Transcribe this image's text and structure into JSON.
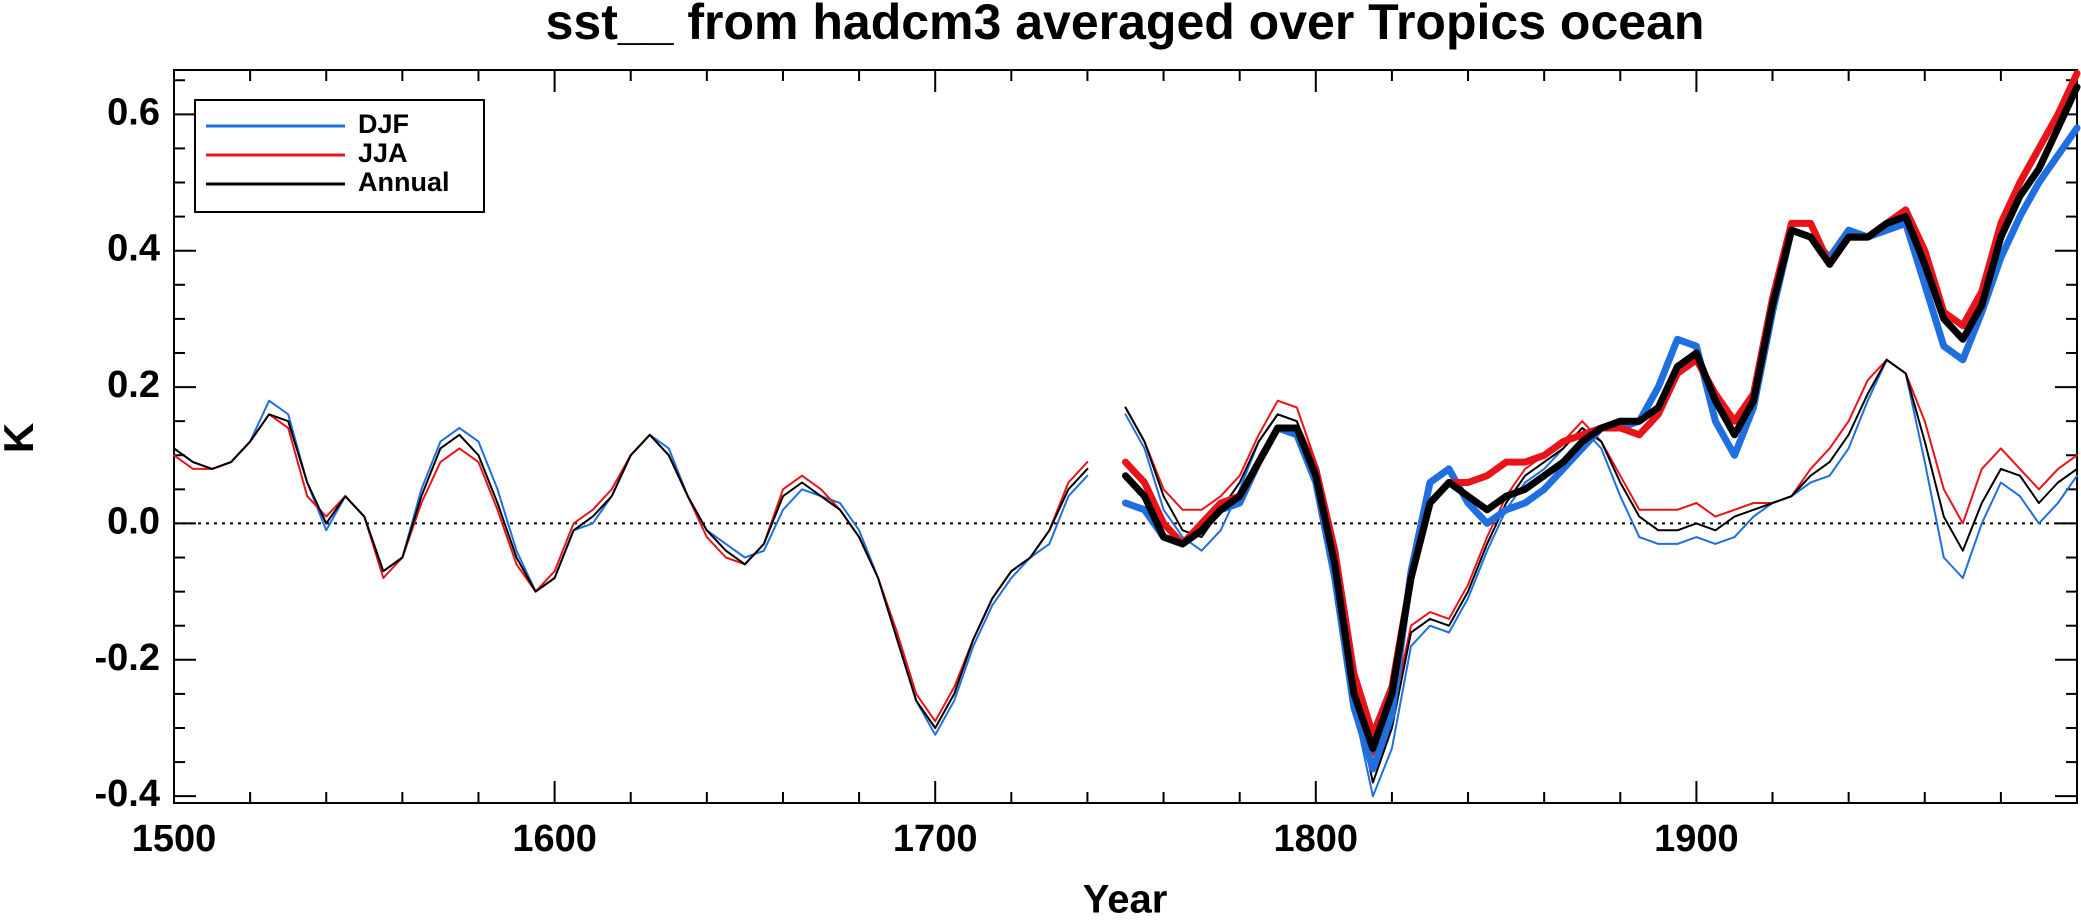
{
  "chart_data": {
    "type": "line",
    "title": "sst__ from hadcm3 averaged over Tropics ocean",
    "x_label": "Year",
    "y_label": "K",
    "xlim": [
      1500,
      2000
    ],
    "ylim": [
      -0.41,
      0.665
    ],
    "xticks": [
      1500,
      1600,
      1700,
      1800,
      1900
    ],
    "xminorticks": [
      1520,
      1540,
      1560,
      1580,
      1620,
      1640,
      1660,
      1680,
      1720,
      1740,
      1760,
      1780,
      1820,
      1840,
      1860,
      1880,
      1920,
      1940,
      1960,
      1980
    ],
    "yticks": [
      -0.4,
      -0.2,
      {
        "value": 0,
        "label": "0.0"
      },
      0.2,
      0.4,
      0.6
    ],
    "yminorticks": [
      -0.35,
      -0.3,
      -0.25,
      -0.15,
      -0.1,
      -0.05,
      0.05,
      0.1,
      0.15,
      0.25,
      0.3,
      0.35,
      0.45,
      0.5,
      0.55,
      0.65
    ],
    "zero_line": true,
    "legend": "upper left",
    "x": [
      1500,
      1505,
      1510,
      1515,
      1520,
      1525,
      1530,
      1535,
      1540,
      1545,
      1550,
      1555,
      1560,
      1565,
      1570,
      1575,
      1580,
      1585,
      1590,
      1595,
      1600,
      1605,
      1610,
      1615,
      1620,
      1625,
      1630,
      1635,
      1640,
      1645,
      1650,
      1655,
      1660,
      1665,
      1670,
      1675,
      1680,
      1685,
      1690,
      1695,
      1700,
      1705,
      1710,
      1715,
      1720,
      1725,
      1730,
      1735,
      1740,
      1745,
      1750,
      1755,
      1760,
      1765,
      1770,
      1775,
      1780,
      1785,
      1790,
      1795,
      1800,
      1805,
      1810,
      1815,
      1820,
      1825,
      1830,
      1835,
      1840,
      1845,
      1850,
      1855,
      1860,
      1865,
      1870,
      1875,
      1880,
      1885,
      1890,
      1895,
      1900,
      1905,
      1910,
      1915,
      1920,
      1925,
      1930,
      1935,
      1940,
      1945,
      1950,
      1955,
      1960,
      1965,
      1970,
      1975,
      1980,
      1985,
      1990,
      1995,
      2000
    ],
    "series": [
      {
        "name": "DJF",
        "color": "#1f6fe0",
        "values": [
          0.11,
          0.09,
          0.08,
          0.09,
          0.12,
          0.18,
          0.16,
          0.06,
          -0.01,
          0.04,
          0.01,
          -0.07,
          -0.05,
          0.05,
          0.12,
          0.14,
          0.12,
          0.05,
          -0.04,
          -0.1,
          -0.08,
          -0.01,
          0.0,
          0.04,
          0.1,
          0.13,
          0.11,
          0.04,
          -0.01,
          -0.03,
          -0.05,
          -0.04,
          0.02,
          0.05,
          0.04,
          0.03,
          -0.01,
          -0.08,
          -0.17,
          -0.26,
          -0.31,
          -0.26,
          -0.18,
          -0.12,
          -0.08,
          -0.05,
          -0.03,
          0.04,
          0.07,
          null,
          0.16,
          0.11,
          0.02,
          -0.02,
          -0.04,
          -0.01,
          0.05,
          0.12,
          0.16,
          0.15,
          0.08,
          -0.06,
          -0.27,
          -0.4,
          -0.33,
          -0.18,
          -0.15,
          -0.16,
          -0.11,
          -0.04,
          0.02,
          0.06,
          0.08,
          0.11,
          0.14,
          0.11,
          0.04,
          -0.02,
          -0.03,
          -0.03,
          -0.02,
          -0.03,
          -0.02,
          0.01,
          0.03,
          0.04,
          0.06,
          0.07,
          0.11,
          0.18,
          0.24,
          0.22,
          0.09,
          -0.05,
          -0.08,
          0.0,
          0.06,
          0.04,
          0.0,
          0.03,
          0.07
        ],
        "bold_values": [
          null,
          null,
          null,
          null,
          null,
          null,
          null,
          null,
          null,
          null,
          null,
          null,
          null,
          null,
          null,
          null,
          null,
          null,
          null,
          null,
          null,
          null,
          null,
          null,
          null,
          null,
          null,
          null,
          null,
          null,
          null,
          null,
          null,
          null,
          null,
          null,
          null,
          null,
          null,
          null,
          null,
          null,
          null,
          null,
          null,
          null,
          null,
          null,
          null,
          null,
          0.03,
          0.02,
          -0.02,
          -0.03,
          -0.01,
          0.02,
          0.03,
          0.09,
          0.14,
          0.13,
          0.06,
          -0.08,
          -0.27,
          -0.36,
          -0.28,
          -0.07,
          0.06,
          0.08,
          0.03,
          0.0,
          0.02,
          0.03,
          0.05,
          0.08,
          0.11,
          0.14,
          0.14,
          0.15,
          0.2,
          0.27,
          0.26,
          0.15,
          0.1,
          0.17,
          0.31,
          0.43,
          0.42,
          0.39,
          0.43,
          0.42,
          0.43,
          0.44,
          0.35,
          0.26,
          0.24,
          0.31,
          0.39,
          0.45,
          0.5,
          0.54,
          0.58
        ]
      },
      {
        "name": "JJA",
        "color": "#e8141a",
        "values": [
          0.1,
          0.08,
          0.08,
          0.09,
          0.12,
          0.16,
          0.14,
          0.04,
          0.01,
          0.04,
          0.01,
          -0.08,
          -0.05,
          0.03,
          0.09,
          0.11,
          0.09,
          0.02,
          -0.06,
          -0.1,
          -0.07,
          0.0,
          0.02,
          0.05,
          0.1,
          0.13,
          0.1,
          0.04,
          -0.02,
          -0.05,
          -0.06,
          -0.03,
          0.05,
          0.07,
          0.05,
          0.02,
          -0.02,
          -0.08,
          -0.16,
          -0.25,
          -0.29,
          -0.24,
          -0.17,
          -0.11,
          -0.07,
          -0.05,
          -0.01,
          0.06,
          0.09,
          null,
          0.17,
          0.12,
          0.05,
          0.02,
          0.02,
          0.04,
          0.07,
          0.13,
          0.18,
          0.17,
          0.09,
          -0.04,
          -0.22,
          -0.34,
          -0.28,
          -0.15,
          -0.13,
          -0.14,
          -0.09,
          -0.02,
          0.04,
          0.08,
          0.1,
          0.12,
          0.15,
          0.12,
          0.07,
          0.02,
          0.02,
          0.02,
          0.03,
          0.01,
          0.02,
          0.03,
          0.03,
          0.04,
          0.08,
          0.11,
          0.15,
          0.21,
          0.24,
          0.22,
          0.15,
          0.05,
          0.0,
          0.08,
          0.11,
          0.08,
          0.05,
          0.08,
          0.1
        ],
        "bold_values": [
          null,
          null,
          null,
          null,
          null,
          null,
          null,
          null,
          null,
          null,
          null,
          null,
          null,
          null,
          null,
          null,
          null,
          null,
          null,
          null,
          null,
          null,
          null,
          null,
          null,
          null,
          null,
          null,
          null,
          null,
          null,
          null,
          null,
          null,
          null,
          null,
          null,
          null,
          null,
          null,
          null,
          null,
          null,
          null,
          null,
          null,
          null,
          null,
          null,
          null,
          0.09,
          0.06,
          0.0,
          -0.03,
          0.0,
          0.03,
          0.04,
          0.09,
          0.14,
          0.14,
          0.08,
          -0.04,
          -0.22,
          -0.31,
          -0.24,
          -0.08,
          0.03,
          0.06,
          0.06,
          0.07,
          0.09,
          0.09,
          0.1,
          0.12,
          0.13,
          0.14,
          0.14,
          0.13,
          0.16,
          0.22,
          0.24,
          0.19,
          0.15,
          0.19,
          0.33,
          0.44,
          0.44,
          0.38,
          0.42,
          0.42,
          0.44,
          0.46,
          0.4,
          0.31,
          0.29,
          0.34,
          0.44,
          0.5,
          0.55,
          0.6,
          0.66
        ]
      },
      {
        "name": "Annual",
        "color": "#000000",
        "values": [
          0.11,
          0.09,
          0.08,
          0.09,
          0.12,
          0.16,
          0.15,
          0.06,
          0.0,
          0.04,
          0.01,
          -0.07,
          -0.05,
          0.04,
          0.11,
          0.13,
          0.1,
          0.03,
          -0.05,
          -0.1,
          -0.08,
          -0.01,
          0.01,
          0.04,
          0.1,
          0.13,
          0.1,
          0.04,
          -0.01,
          -0.04,
          -0.06,
          -0.03,
          0.04,
          0.06,
          0.04,
          0.02,
          -0.02,
          -0.08,
          -0.17,
          -0.26,
          -0.3,
          -0.25,
          -0.17,
          -0.11,
          -0.07,
          -0.05,
          -0.01,
          0.05,
          0.08,
          null,
          0.17,
          0.12,
          0.04,
          -0.01,
          -0.02,
          0.02,
          0.06,
          0.12,
          0.16,
          0.15,
          0.08,
          -0.05,
          -0.25,
          -0.38,
          -0.3,
          -0.16,
          -0.14,
          -0.15,
          -0.1,
          -0.03,
          0.03,
          0.07,
          0.09,
          0.11,
          0.14,
          0.12,
          0.06,
          0.01,
          -0.01,
          -0.01,
          0.0,
          -0.01,
          0.01,
          0.02,
          0.03,
          0.04,
          0.07,
          0.09,
          0.13,
          0.19,
          0.24,
          0.22,
          0.12,
          0.01,
          -0.04,
          0.03,
          0.08,
          0.07,
          0.03,
          0.06,
          0.08
        ],
        "bold_values": [
          null,
          null,
          null,
          null,
          null,
          null,
          null,
          null,
          null,
          null,
          null,
          null,
          null,
          null,
          null,
          null,
          null,
          null,
          null,
          null,
          null,
          null,
          null,
          null,
          null,
          null,
          null,
          null,
          null,
          null,
          null,
          null,
          null,
          null,
          null,
          null,
          null,
          null,
          null,
          null,
          null,
          null,
          null,
          null,
          null,
          null,
          null,
          null,
          null,
          null,
          0.07,
          0.04,
          -0.02,
          -0.03,
          -0.01,
          0.02,
          0.04,
          0.09,
          0.14,
          0.14,
          0.07,
          -0.06,
          -0.25,
          -0.33,
          -0.25,
          -0.08,
          0.03,
          0.06,
          0.04,
          0.02,
          0.04,
          0.05,
          0.07,
          0.09,
          0.12,
          0.14,
          0.15,
          0.15,
          0.17,
          0.23,
          0.25,
          0.18,
          0.13,
          0.18,
          0.32,
          0.43,
          0.42,
          0.38,
          0.42,
          0.42,
          0.44,
          0.45,
          0.38,
          0.3,
          0.27,
          0.32,
          0.42,
          0.48,
          0.52,
          0.58,
          0.64
        ]
      }
    ]
  }
}
